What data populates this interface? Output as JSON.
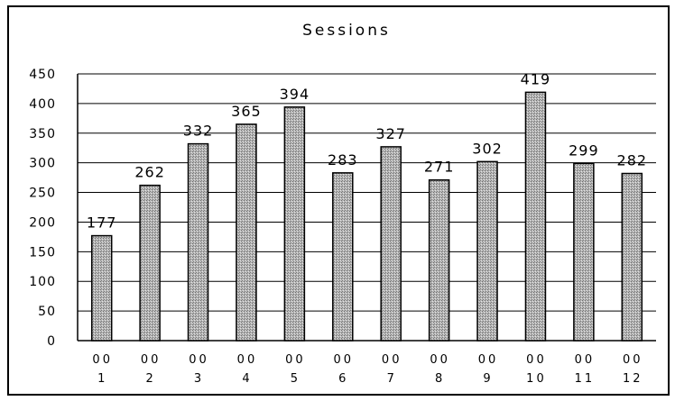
{
  "chart_data": {
    "type": "bar",
    "title": "Sessions",
    "categories": [
      [
        "00",
        "1"
      ],
      [
        "00",
        "2"
      ],
      [
        "00",
        "3"
      ],
      [
        "00",
        "4"
      ],
      [
        "00",
        "5"
      ],
      [
        "00",
        "6"
      ],
      [
        "00",
        "7"
      ],
      [
        "00",
        "8"
      ],
      [
        "00",
        "9"
      ],
      [
        "00",
        "10"
      ],
      [
        "00",
        "11"
      ],
      [
        "00",
        "12"
      ]
    ],
    "values": [
      177,
      262,
      332,
      365,
      394,
      283,
      327,
      271,
      302,
      419,
      299,
      282
    ],
    "data_labels": [
      "177",
      "262",
      "332",
      "365",
      "394",
      "283",
      "327",
      "271",
      "302",
      "419",
      "299",
      "282"
    ],
    "ylim": [
      0,
      450
    ],
    "yticks": [
      "0",
      "50",
      "100",
      "150",
      "200",
      "250",
      "300",
      "350",
      "400",
      "450"
    ],
    "xlabel": "",
    "ylabel": "",
    "grid": true,
    "legend": "none",
    "colors": {
      "bar_fill": "#a9a9a9",
      "bar_stroke": "#000000",
      "grid": "#000000"
    }
  }
}
